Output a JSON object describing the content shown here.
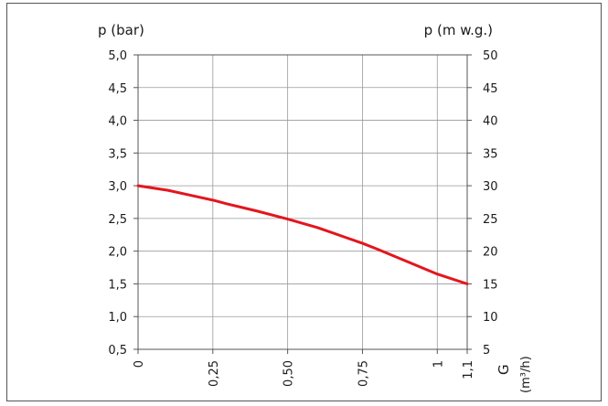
{
  "chart_data": {
    "type": "line",
    "left_title": "p (bar)",
    "right_title": "p  (m w.g.)",
    "x_title": "G",
    "x_unit": "(m³/h)",
    "x_ticks": [
      {
        "value": 0,
        "label": "0"
      },
      {
        "value": 0.25,
        "label": "0,25"
      },
      {
        "value": 0.5,
        "label": "0,50"
      },
      {
        "value": 0.75,
        "label": "0,75"
      },
      {
        "value": 1.0,
        "label": "1"
      },
      {
        "value": 1.1,
        "label": "1,1"
      }
    ],
    "y_left_ticks": [
      "0,5",
      "1,0",
      "1,5",
      "2,0",
      "2,5",
      "3,0",
      "3,5",
      "4,0",
      "4,5",
      "5,0"
    ],
    "y_left_values": [
      0.5,
      1.0,
      1.5,
      2.0,
      2.5,
      3.0,
      3.5,
      4.0,
      4.5,
      5.0
    ],
    "y_right_ticks": [
      "5",
      "10",
      "15",
      "20",
      "25",
      "30",
      "35",
      "40",
      "45",
      "50"
    ],
    "xlim": [
      0,
      1.1
    ],
    "ylim": [
      0.5,
      5.0
    ],
    "grid": true,
    "line_color": "#e3161e",
    "series": [
      {
        "x": [
          0,
          0.1,
          0.2,
          0.25,
          0.3,
          0.4,
          0.5,
          0.6,
          0.7,
          0.75,
          0.8,
          0.9,
          1.0,
          1.1
        ],
        "y": [
          3.0,
          2.93,
          2.83,
          2.78,
          2.72,
          2.61,
          2.49,
          2.36,
          2.2,
          2.12,
          2.03,
          1.84,
          1.65,
          1.5
        ]
      }
    ]
  }
}
